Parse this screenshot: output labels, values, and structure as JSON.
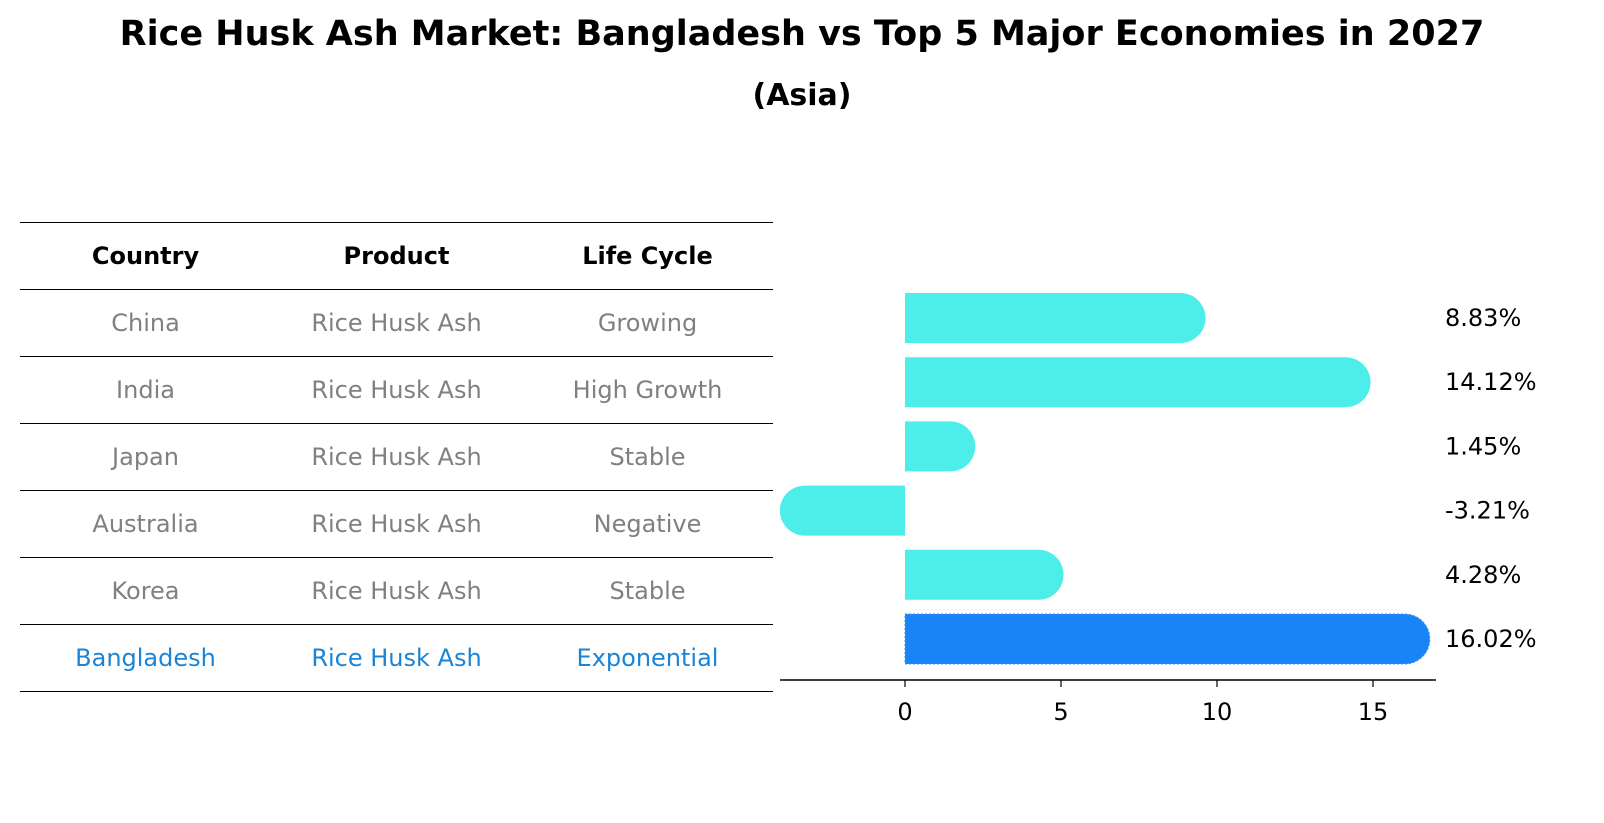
{
  "header": {
    "title": "Rice Husk Ash Market: Bangladesh vs Top 5 Major Economies in 2027",
    "subtitle": "(Asia)"
  },
  "table": {
    "columns": [
      "Country",
      "Product",
      "Life Cycle"
    ],
    "rows": [
      {
        "country": "China",
        "product": "Rice Husk Ash",
        "life_cycle": "Growing"
      },
      {
        "country": "India",
        "product": "Rice Husk Ash",
        "life_cycle": "High Growth"
      },
      {
        "country": "Japan",
        "product": "Rice Husk Ash",
        "life_cycle": "Stable"
      },
      {
        "country": "Australia",
        "product": "Rice Husk Ash",
        "life_cycle": "Negative"
      },
      {
        "country": "Korea",
        "product": "Rice Husk Ash",
        "life_cycle": "Stable"
      },
      {
        "country": "Bangladesh",
        "product": "Rice Husk Ash",
        "life_cycle": "Exponential"
      }
    ]
  },
  "chart_data": {
    "type": "bar",
    "orientation": "horizontal",
    "categories": [
      "China",
      "India",
      "Japan",
      "Australia",
      "Korea",
      "Bangladesh"
    ],
    "values": [
      8.83,
      14.12,
      1.45,
      -3.21,
      4.28,
      16.02
    ],
    "value_labels": [
      "8.83%",
      "14.12%",
      "1.45%",
      "-3.21%",
      "4.28%",
      "16.02%"
    ],
    "xlim": [
      -4.2,
      17
    ],
    "xticks": [
      0,
      5,
      10,
      15
    ],
    "grid": false,
    "colors": {
      "default": "#4deeea",
      "highlight": "#1884f7"
    },
    "highlight_category": "Bangladesh"
  }
}
